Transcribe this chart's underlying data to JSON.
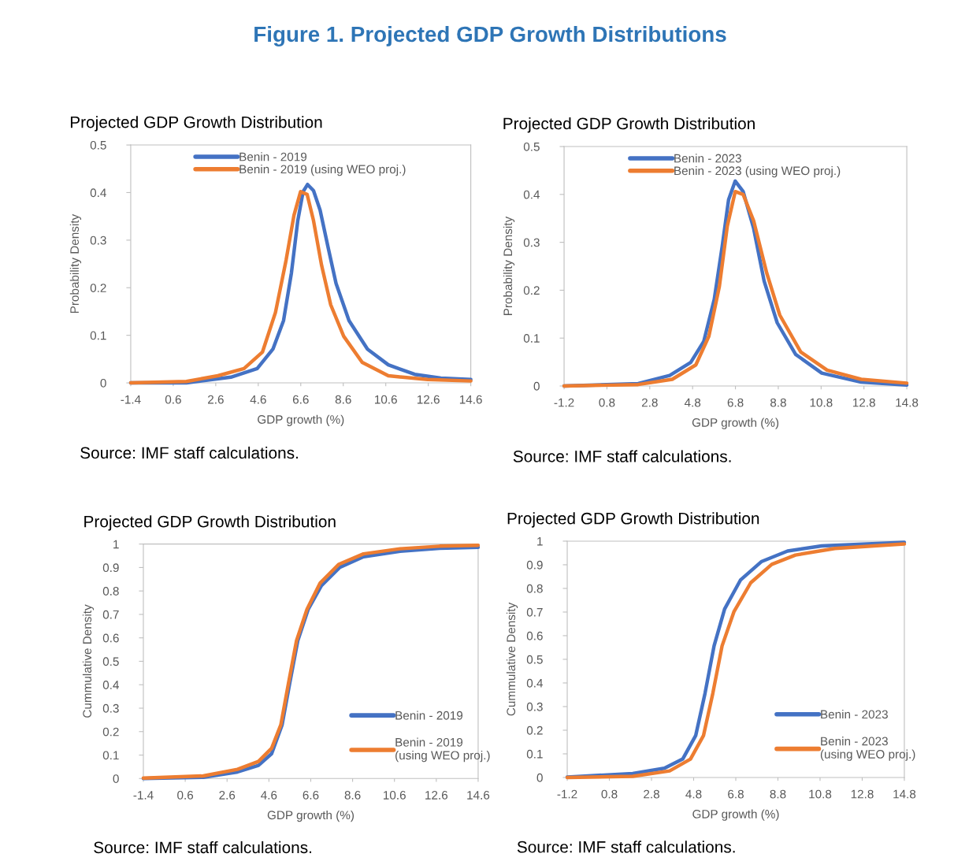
{
  "chart_data": [
    {
      "type": "line",
      "title": "Projected GDP Growth Distribution",
      "xlabel": "GDP growth (%)",
      "ylabel": "Probability Density",
      "xlim": [
        -1.4,
        14.6
      ],
      "xticks": [
        -1.4,
        0.6,
        2.6,
        4.6,
        6.6,
        8.6,
        10.6,
        12.6,
        14.6
      ],
      "ylim": [
        0,
        0.5
      ],
      "yticks": [
        0,
        0.1,
        0.2,
        0.3,
        0.4,
        0.5
      ],
      "grid": false,
      "legend": "top",
      "line_style": "solid",
      "marker": "none",
      "annotations": [
        "Figure 1. Projected GDP Growth Distributions",
        "Source: IMF staff calculations."
      ],
      "series": [
        {
          "name": "Benin - 2019",
          "color": "#4472c4",
          "x": [
            -1.4,
            1.22,
            3.31,
            4.55,
            5.29,
            5.79,
            6.16,
            6.46,
            6.71,
            6.92,
            7.2,
            7.51,
            7.88,
            8.26,
            8.87,
            9.74,
            10.72,
            11.96,
            13.19,
            14.6
          ],
          "values": [
            0,
            0,
            0.012,
            0.03,
            0.071,
            0.131,
            0.231,
            0.341,
            0.402,
            0.417,
            0.404,
            0.363,
            0.286,
            0.209,
            0.131,
            0.071,
            0.038,
            0.018,
            0.01,
            0.007
          ]
        },
        {
          "name": "Benin - 2019 (using WEO proj.)",
          "color": "#ed7d31",
          "x": [
            -1.4,
            1.22,
            2.7,
            3.93,
            4.8,
            5.41,
            5.91,
            6.28,
            6.59,
            6.9,
            7.2,
            7.58,
            8.01,
            8.62,
            9.49,
            10.72,
            12.57,
            14.6
          ],
          "values": [
            0,
            0.003,
            0.015,
            0.03,
            0.065,
            0.148,
            0.258,
            0.352,
            0.402,
            0.396,
            0.341,
            0.247,
            0.164,
            0.098,
            0.043,
            0.015,
            0.007,
            0.004
          ]
        }
      ]
    },
    {
      "type": "line",
      "title": "Projected GDP Growth Distribution",
      "xlabel": "GDP growth (%)",
      "ylabel": "Probability Density",
      "xlim": [
        -1.2,
        14.8
      ],
      "xticks": [
        -1.2,
        0.8,
        2.8,
        4.8,
        6.8,
        8.8,
        10.8,
        12.8,
        14.8
      ],
      "ylim": [
        0,
        0.5
      ],
      "yticks": [
        0,
        0.1,
        0.2,
        0.3,
        0.4,
        0.5
      ],
      "grid": false,
      "legend": "top",
      "line_style": "solid",
      "marker": "none",
      "annotations": [
        "Source: IMF staff calculations."
      ],
      "series": [
        {
          "name": "Benin - 2023",
          "color": "#4472c4",
          "x": [
            -1.2,
            2.26,
            3.73,
            4.71,
            5.32,
            5.81,
            6.18,
            6.48,
            6.79,
            7.16,
            7.65,
            8.14,
            8.75,
            9.61,
            10.83,
            12.67,
            14.8
          ],
          "values": [
            0,
            0.005,
            0.022,
            0.049,
            0.093,
            0.181,
            0.291,
            0.389,
            0.428,
            0.406,
            0.329,
            0.219,
            0.132,
            0.066,
            0.027,
            0.008,
            0.002
          ]
        },
        {
          "name": "Benin - 2023 (using WEO proj.)",
          "color": "#ed7d31",
          "x": [
            -1.2,
            2.26,
            3.85,
            4.95,
            5.56,
            6.05,
            6.42,
            6.79,
            7.16,
            7.65,
            8.26,
            8.87,
            9.85,
            11.08,
            12.67,
            14.8
          ],
          "values": [
            0,
            0.003,
            0.014,
            0.044,
            0.104,
            0.208,
            0.334,
            0.406,
            0.4,
            0.345,
            0.236,
            0.148,
            0.071,
            0.033,
            0.014,
            0.006
          ]
        }
      ]
    },
    {
      "type": "line",
      "title": "Projected GDP Growth Distribution",
      "xlabel": "GDP growth (%)",
      "ylabel": "Cummulative Density",
      "xlim": [
        -1.4,
        14.6
      ],
      "xticks": [
        -1.4,
        0.6,
        2.6,
        4.6,
        6.6,
        8.6,
        10.6,
        12.6,
        14.6
      ],
      "ylim": [
        0,
        1
      ],
      "yticks": [
        0,
        0.1,
        0.2,
        0.3,
        0.4,
        0.5,
        0.6,
        0.7,
        0.8,
        0.9,
        1
      ],
      "grid": false,
      "legend": "bottom right",
      "line_style": "solid",
      "marker": "none",
      "annotations": [
        "Source: IMF staff calculations."
      ],
      "series": [
        {
          "name": "Benin - 2019",
          "color": "#4472c4",
          "x": [
            -1.4,
            1.46,
            3.1,
            4.1,
            4.73,
            5.23,
            5.6,
            5.98,
            6.48,
            7.11,
            7.99,
            9.12,
            10.87,
            12.76,
            14.6
          ],
          "values": [
            0,
            0.005,
            0.028,
            0.056,
            0.106,
            0.229,
            0.409,
            0.588,
            0.722,
            0.823,
            0.901,
            0.946,
            0.969,
            0.982,
            0.986
          ]
        },
        {
          "name": "Benin - 2019\n(using WEO proj.)",
          "color": "#ed7d31",
          "x": [
            -1.4,
            1.46,
            3.1,
            4.1,
            4.73,
            5.17,
            5.54,
            5.92,
            6.42,
            7.05,
            7.93,
            9.12,
            10.87,
            12.76,
            14.6
          ],
          "values": [
            0.002,
            0.011,
            0.039,
            0.073,
            0.129,
            0.229,
            0.409,
            0.588,
            0.722,
            0.834,
            0.913,
            0.958,
            0.98,
            0.991,
            0.995
          ]
        }
      ]
    },
    {
      "type": "line",
      "title": "Projected GDP Growth Distribution",
      "xlabel": "GDP growth (%)",
      "ylabel": "Cummulative Density",
      "xlim": [
        -1.2,
        14.8
      ],
      "xticks": [
        -1.2,
        0.8,
        2.8,
        4.8,
        6.8,
        8.8,
        10.8,
        12.8,
        14.8
      ],
      "ylim": [
        0,
        1
      ],
      "yticks": [
        0,
        0.1,
        0.2,
        0.3,
        0.4,
        0.5,
        0.6,
        0.7,
        0.8,
        0.9,
        1
      ],
      "grid": false,
      "legend": "bottom right",
      "line_style": "solid",
      "marker": "none",
      "annotations": [
        "Source: IMF staff calculations."
      ],
      "series": [
        {
          "name": "Benin - 2023",
          "color": "#4472c4",
          "x": [
            -1.2,
            1.91,
            3.41,
            4.28,
            4.9,
            5.34,
            5.77,
            6.27,
            7.02,
            8.01,
            9.26,
            10.88,
            14.8
          ],
          "values": [
            0.002,
            0.017,
            0.039,
            0.078,
            0.178,
            0.356,
            0.557,
            0.713,
            0.835,
            0.913,
            0.958,
            0.98,
            0.995
          ]
        },
        {
          "name": "Benin - 2023\n(using WEO proj.)",
          "color": "#ed7d31",
          "x": [
            -1.2,
            1.91,
            3.66,
            4.65,
            5.27,
            5.71,
            6.15,
            6.71,
            7.51,
            8.51,
            9.63,
            11.5,
            14.8
          ],
          "values": [
            0,
            0.005,
            0.028,
            0.078,
            0.178,
            0.356,
            0.557,
            0.701,
            0.824,
            0.902,
            0.941,
            0.969,
            0.988
          ]
        }
      ]
    }
  ]
}
